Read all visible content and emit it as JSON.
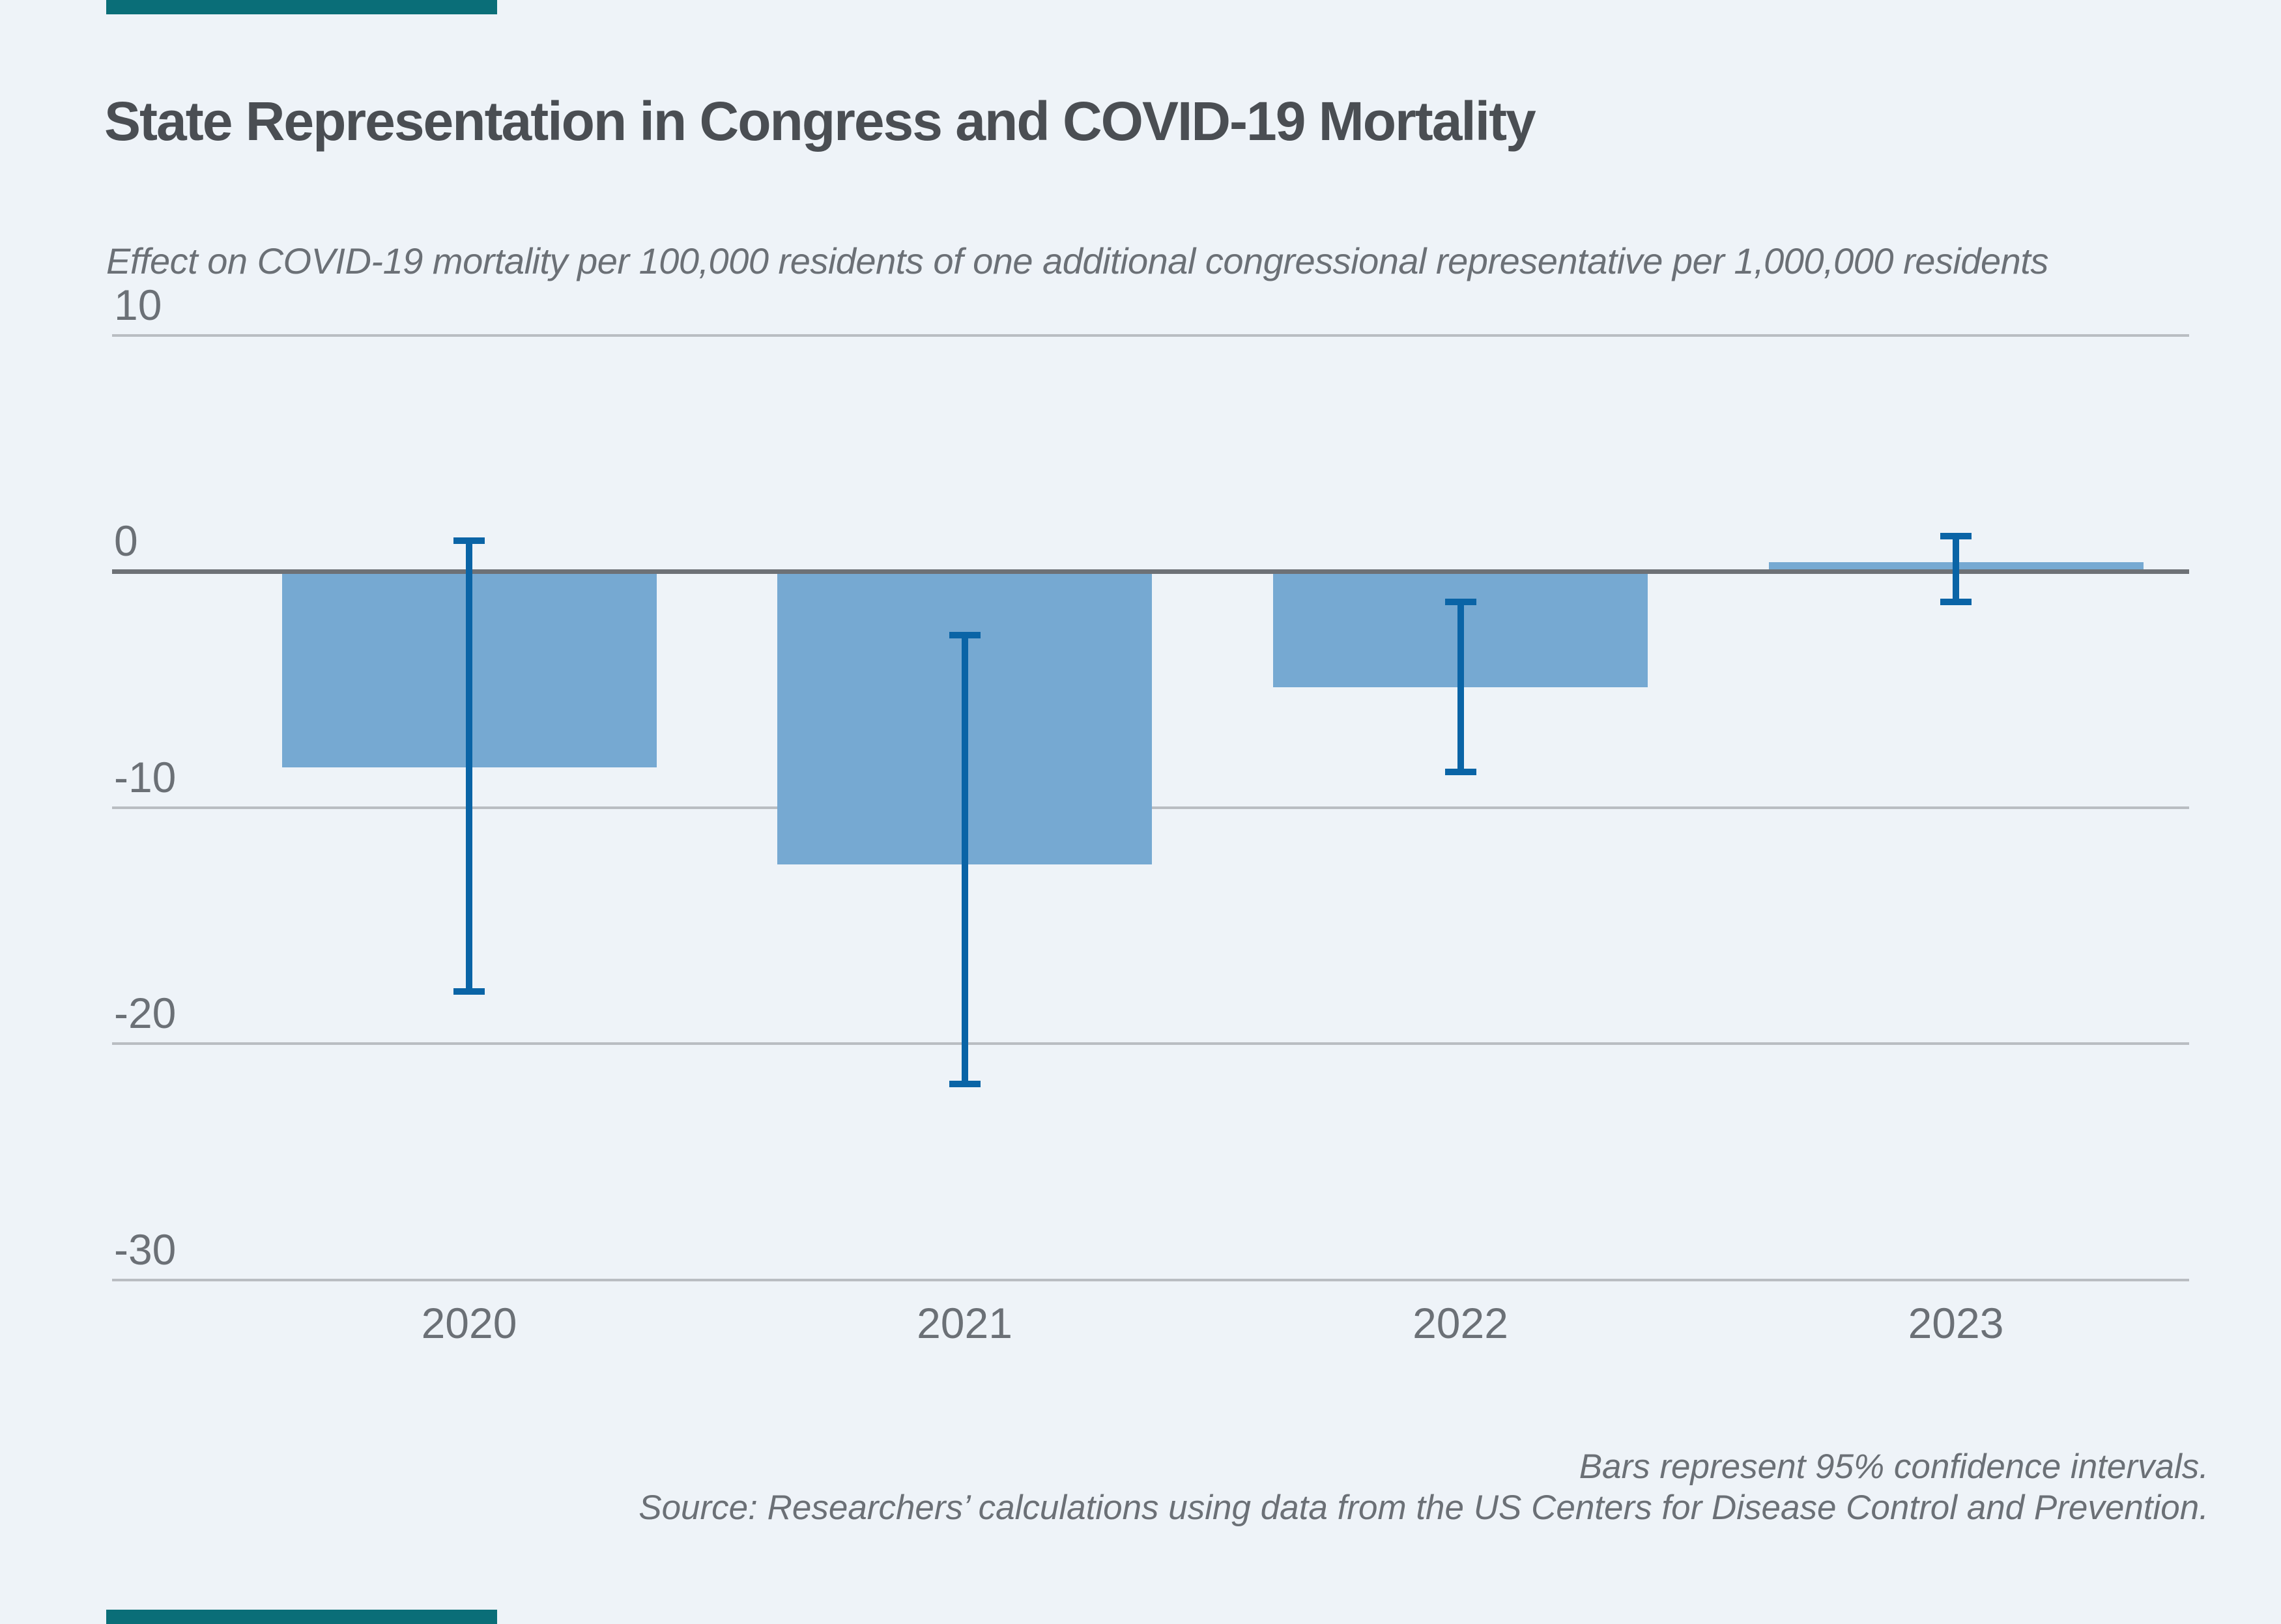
{
  "page": {
    "background_color": "#eef3f8",
    "accent_bar_color": "#0a6e78"
  },
  "chart_data": {
    "type": "bar",
    "title": "State Representation in Congress and COVID-19 Mortality",
    "subtitle": "Effect on COVID-19 mortality per 100,000 residents of one additional congressional representative per 1,000,000 residents",
    "categories": [
      "2020",
      "2021",
      "2022",
      "2023"
    ],
    "series": [
      {
        "name": "Effect on COVID-19 mortality per 100,000 residents",
        "values": [
          -8.3,
          -12.4,
          -4.9,
          0.4
        ]
      }
    ],
    "ci_high": [
      1.3,
      -2.7,
      -1.3,
      1.5
    ],
    "ci_low": [
      -17.8,
      -21.7,
      -8.5,
      -1.3
    ],
    "yticks": [
      10,
      0,
      -10,
      -20,
      -30
    ],
    "ytick_labels": [
      "10",
      "0",
      "-10",
      "-20",
      "-30"
    ],
    "ylim": [
      -33.5,
      11
    ],
    "xlabel": "",
    "ylabel": "",
    "grid": "horizontal",
    "legend": "none",
    "bar_color": "#76a9d2",
    "ci_color": "#0a64a6",
    "zero_axis_color": "#6d7176",
    "gridline_color": "#b9bdc2",
    "notes": [
      "Bars represent 95% confidence intervals.",
      "Source: Researchers’ calculations using data from the US Centers for Disease Control and Prevention."
    ]
  }
}
